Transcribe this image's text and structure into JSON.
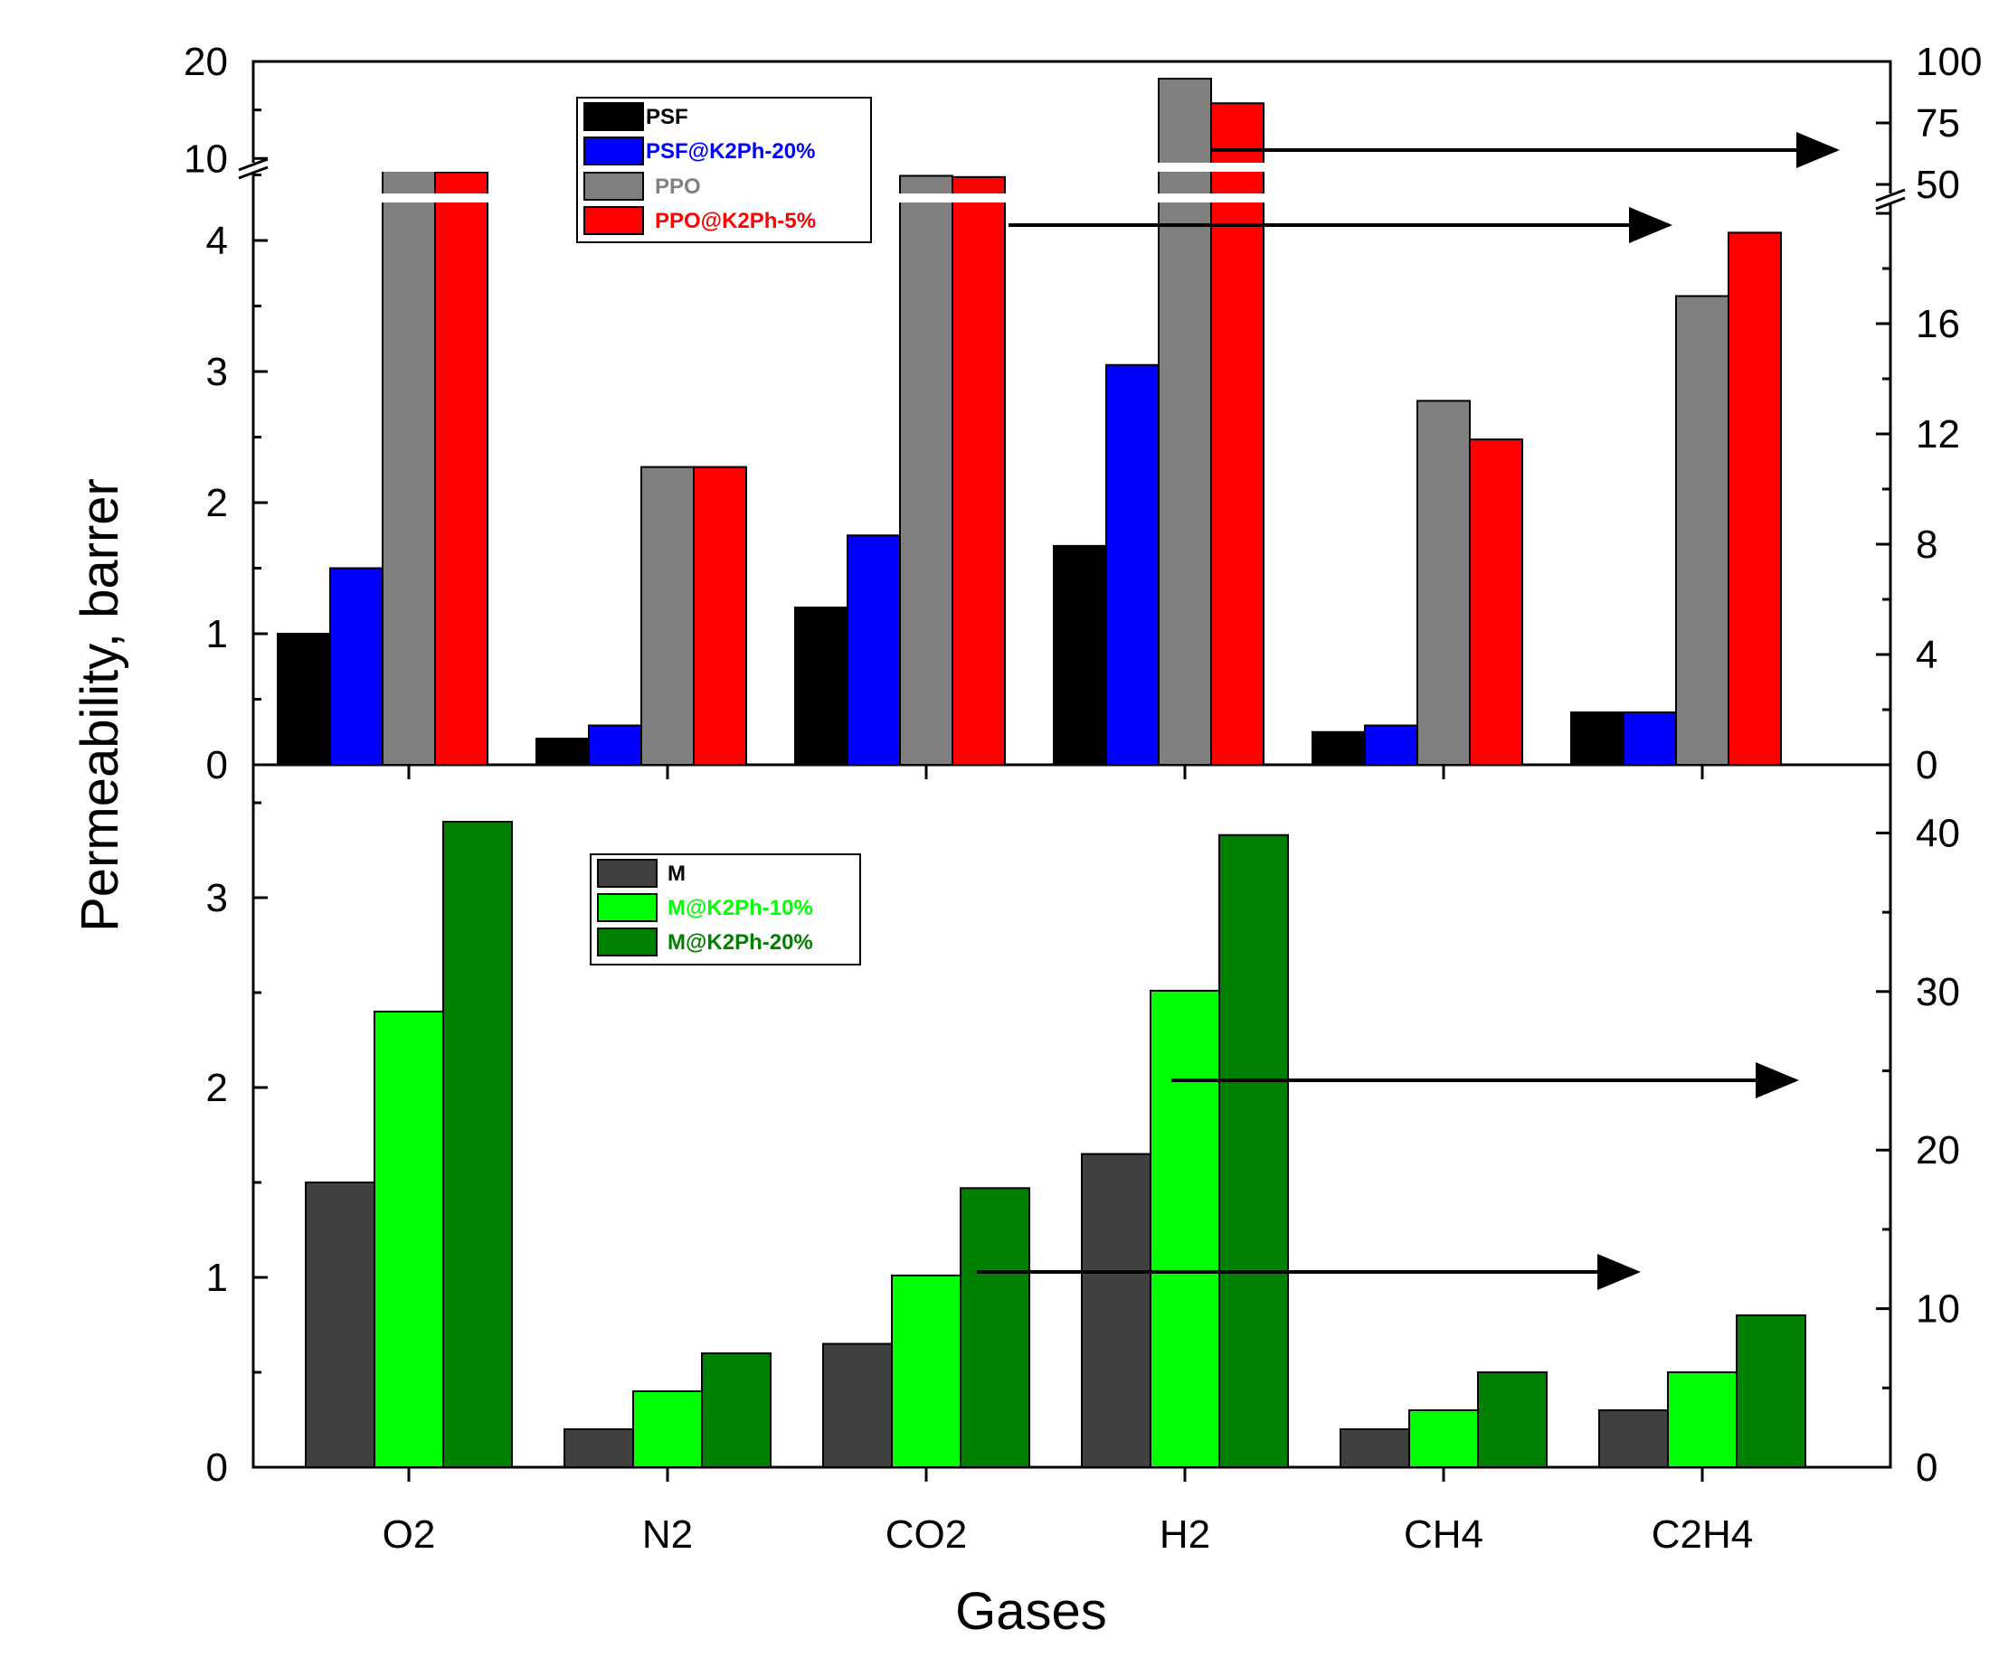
{
  "chart_data": [
    {
      "type": "bar",
      "panel": "top",
      "categories": [
        "O2",
        "N2",
        "CO2",
        "H2",
        "CH4",
        "C2H4"
      ],
      "left_axis": {
        "lower_segment": {
          "range": [
            0,
            4.5
          ],
          "ticks": [
            "0",
            "1",
            "2",
            "3",
            "4"
          ]
        },
        "upper_segment": {
          "range": [
            9,
            20
          ],
          "ticks": [
            "10",
            "20"
          ]
        }
      },
      "right_axis": {
        "lower_segment": {
          "range": [
            0,
            20
          ],
          "ticks": [
            "0",
            "4",
            "8",
            "12",
            "16"
          ]
        },
        "upper_segment": {
          "range": [
            50,
            100
          ],
          "ticks": [
            "50",
            "75",
            "100"
          ]
        }
      },
      "series": [
        {
          "name": "PSF",
          "color": "#000000",
          "axis": "left",
          "values": [
            1.0,
            0.2,
            1.2,
            1.67,
            0.25,
            0.4
          ]
        },
        {
          "name": "PSF@K2Ph-20%",
          "color": "#0000ff",
          "axis": "left",
          "values": [
            1.5,
            0.3,
            1.75,
            3.05,
            0.3,
            0.4
          ]
        },
        {
          "name": "PPO",
          "color": "#808080",
          "axis": "right",
          "values": [
            56,
            10.8,
            53.5,
            93,
            13.2,
            17
          ]
        },
        {
          "name": "PPO@K2Ph-5%",
          "color": "#ff0000",
          "axis": "right",
          "values": [
            55,
            10.8,
            53,
            83,
            11.8,
            19.3
          ]
        }
      ],
      "legend_colors": {
        "PSF": "#000000",
        "PSF@K2Ph-20%": "#0000ff",
        "PPO": "#808080",
        "PPO@K2Ph-5%": "#ff0000"
      },
      "legend_placement": "top-left",
      "annotations": "arrows point from PPO / PPO@K2Ph-5% bars to the right-hand axis"
    },
    {
      "type": "bar",
      "panel": "bottom",
      "categories": [
        "O2",
        "N2",
        "CO2",
        "H2",
        "CH4",
        "C2H4"
      ],
      "left_axis": {
        "range": [
          0,
          3.7
        ],
        "ticks": [
          "0",
          "1",
          "2",
          "3"
        ]
      },
      "right_axis": {
        "range": [
          0,
          44.3
        ],
        "ticks": [
          "0",
          "10",
          "20",
          "30",
          "40"
        ]
      },
      "series": [
        {
          "name": "M",
          "color": "#404040",
          "axis": "left",
          "values": [
            1.5,
            0.2,
            0.65,
            1.65,
            0.2,
            0.3
          ]
        },
        {
          "name": "M@K2Ph-10%",
          "color": "#00ff00",
          "axis": "left",
          "values": [
            2.4,
            0.4,
            1.01,
            2.51,
            0.3,
            0.5
          ]
        },
        {
          "name": "M@K2Ph-20%",
          "color": "#008000",
          "axis": "left",
          "values": [
            3.4,
            0.6,
            1.47,
            3.33,
            0.5,
            0.8
          ]
        }
      ],
      "legend_colors": {
        "M": "#000000",
        "M@K2Ph-10%": "#00ff00",
        "M@K2Ph-20%": "#008000"
      },
      "legend_placement": "top-left",
      "annotations": "arrows point from H2 and CO2 bars to the right-hand axis"
    }
  ],
  "ylabel": "Permeability, barrer",
  "xlabel": "Gases",
  "tick_labels": [
    "O2",
    "N2",
    "CO2",
    "H2",
    "CH4",
    "C2H4"
  ]
}
